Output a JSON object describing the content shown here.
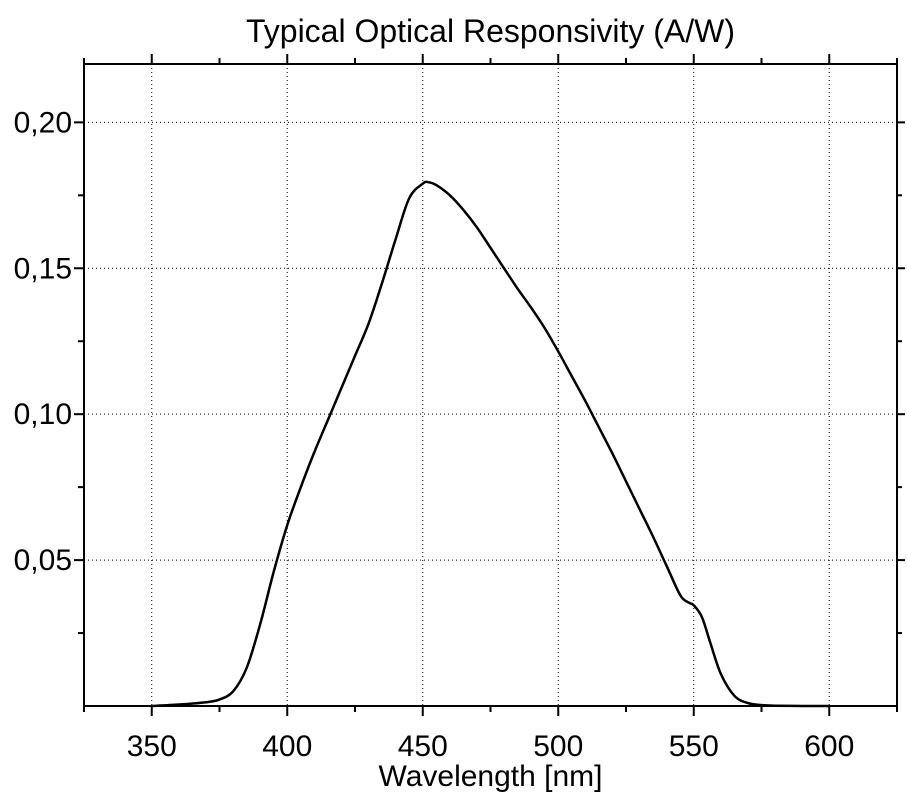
{
  "chart_data": {
    "type": "line",
    "title": "Typical Optical Responsivity (A/W)",
    "xlabel": "Wavelength [nm]",
    "ylabel": "",
    "xlim": [
      325,
      625
    ],
    "ylim": [
      0,
      0.22
    ],
    "x_ticks": [
      350,
      400,
      450,
      500,
      550,
      600
    ],
    "x_tick_labels": [
      "350",
      "400",
      "450",
      "500",
      "550",
      "600"
    ],
    "y_ticks": [
      0.05,
      0.1,
      0.15,
      0.2
    ],
    "y_tick_labels": [
      "0,05",
      "0,10",
      "0,15",
      "0,20"
    ],
    "grid": true,
    "legend": "none",
    "series": [
      {
        "color": "#000000",
        "x": [
          350,
          360,
          370,
          375,
          380,
          385,
          390,
          395,
          400,
          405,
          410,
          415,
          420,
          425,
          430,
          435,
          440,
          445,
          450,
          452,
          455,
          460,
          465,
          470,
          475,
          480,
          485,
          490,
          495,
          500,
          505,
          510,
          515,
          520,
          525,
          530,
          535,
          540,
          545,
          548,
          550,
          553,
          556,
          560,
          565,
          570,
          575,
          580,
          590,
          600
        ],
        "y": [
          0.0,
          0.0005,
          0.0013,
          0.0022,
          0.005,
          0.013,
          0.028,
          0.046,
          0.062,
          0.075,
          0.087,
          0.098,
          0.109,
          0.12,
          0.131,
          0.145,
          0.16,
          0.174,
          0.179,
          0.1795,
          0.1785,
          0.175,
          0.17,
          0.164,
          0.157,
          0.15,
          0.143,
          0.1365,
          0.1295,
          0.1215,
          0.113,
          0.1045,
          0.0955,
          0.0865,
          0.077,
          0.0675,
          0.058,
          0.048,
          0.038,
          0.0355,
          0.0345,
          0.0305,
          0.022,
          0.011,
          0.0035,
          0.001,
          0.0003,
          0.0001,
          0.0,
          0.0
        ]
      }
    ]
  }
}
